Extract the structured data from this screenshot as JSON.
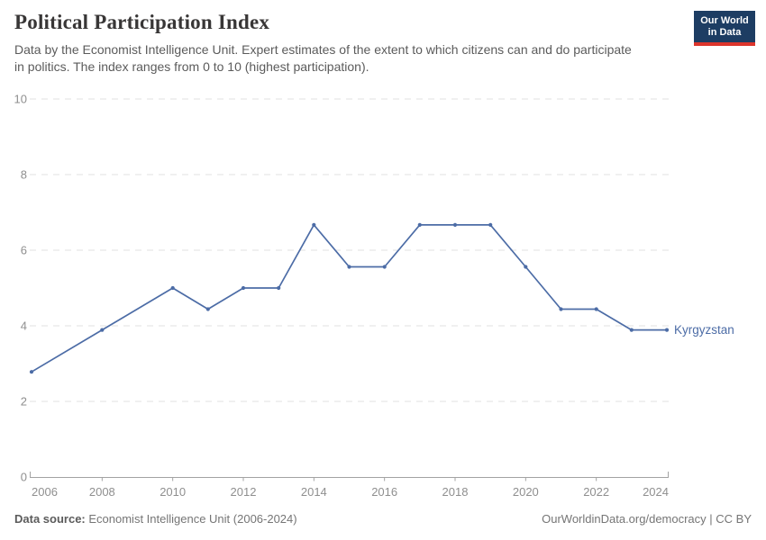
{
  "header": {
    "title": "Political Participation Index",
    "subtitle_lines": [
      "Data by the Economist Intelligence Unit. Expert estimates of the extent to which citizens can and do participate",
      "in politics. The index ranges from 0 to 10 (highest participation)."
    ],
    "logo": {
      "line1": "Our World",
      "line2": "in Data"
    }
  },
  "chart_data": {
    "type": "line",
    "title": "Political Participation Index",
    "entity_label": "Kyrgyzstan",
    "x": [
      2006,
      2008,
      2010,
      2011,
      2012,
      2013,
      2014,
      2015,
      2016,
      2017,
      2018,
      2019,
      2020,
      2021,
      2022,
      2023,
      2024
    ],
    "series": [
      {
        "name": "Kyrgyzstan",
        "color": "#4c6ca6",
        "values": [
          2.78,
          3.89,
          5.0,
          4.44,
          5.0,
          5.0,
          6.67,
          5.56,
          5.56,
          6.67,
          6.67,
          6.67,
          5.56,
          4.44,
          4.44,
          3.89,
          3.89
        ]
      }
    ],
    "xlim": [
      2006,
      2024
    ],
    "ylim": [
      0,
      10
    ],
    "x_ticks": [
      2006,
      2008,
      2010,
      2012,
      2014,
      2016,
      2018,
      2020,
      2022,
      2024
    ],
    "y_ticks": [
      0,
      2,
      4,
      6,
      8,
      10
    ],
    "grid": "horizontal-dashed",
    "legend_position": "end-of-line-label",
    "markers": true
  },
  "colors": {
    "line": "#4c6ca6",
    "grid": "#e0e0e0",
    "axis": "#a3a3a3",
    "axis_text": "#8f8f8f",
    "title": "#383636",
    "subtitle": "#5b5b5b",
    "footer": "#757575",
    "logo_bg": "#1d3d63",
    "logo_accent": "#dc352c"
  },
  "footer": {
    "source_label": "Data source:",
    "source_text": " Economist Intelligence Unit (2006-2024)",
    "right_text": "OurWorldinData.org/democracy | CC BY"
  }
}
